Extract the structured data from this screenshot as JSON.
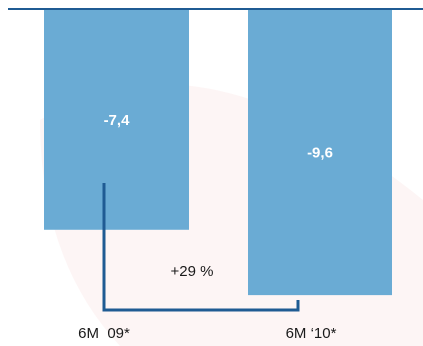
{
  "chart_data": {
    "type": "bar",
    "categories": [
      "6M  09*",
      "6M ‘10*"
    ],
    "values": [
      -7.4,
      -9.6
    ],
    "value_labels": [
      "-7,4",
      "-9,6"
    ],
    "ylim": [
      -10,
      0
    ],
    "grid": false,
    "annotation": "+29 %",
    "colors": {
      "bar": "#6aabd4",
      "axis": "#1f5b93",
      "bracket": "#1f5b93",
      "watermark": "#fbecec"
    }
  }
}
